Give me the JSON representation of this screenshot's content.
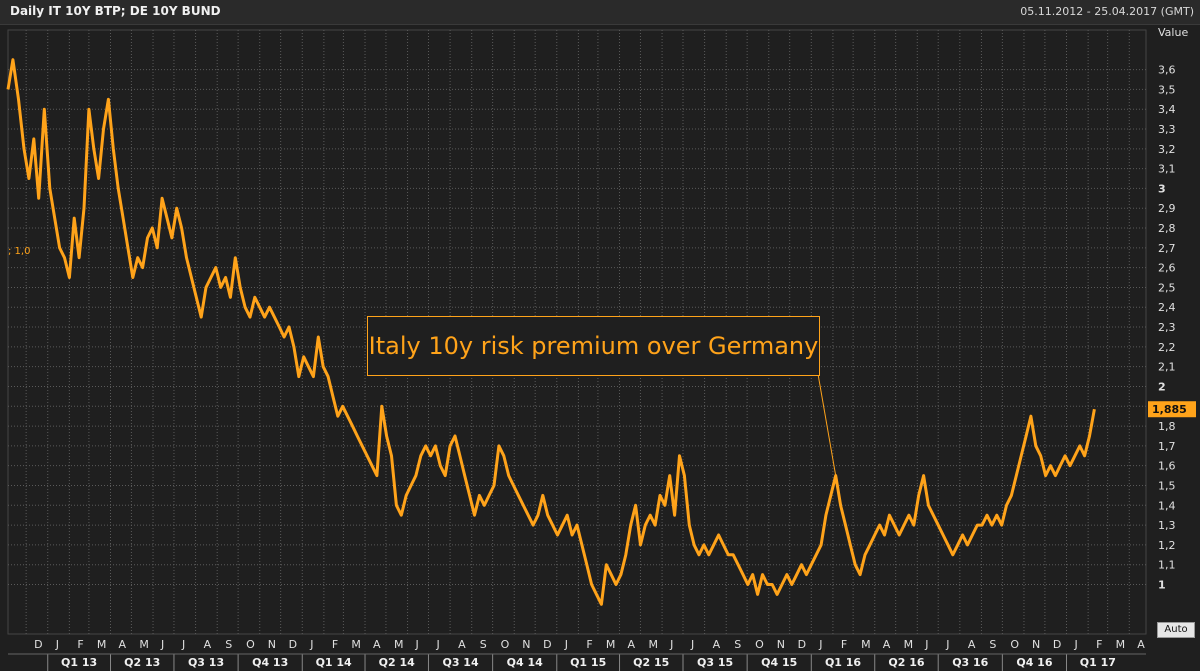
{
  "header": {
    "title": "Daily IT 10Y BTP; DE 10Y BUND",
    "range": "05.11.2012 - 25.04.2017 (GMT)"
  },
  "legend_value": "; 1,0",
  "annotation_text": "Italy 10y risk premium over Germany",
  "auto_label": "Auto",
  "colors": {
    "series": "#ffa31a",
    "grid": "#5a5a5a",
    "background": "#1f1f1f"
  },
  "chart_data": {
    "type": "line",
    "title": "Daily IT 10Y BTP; DE 10Y BUND",
    "ylabel": "Value",
    "ylim": [
      0.75,
      3.8
    ],
    "yticks": [
      1,
      1.1,
      1.2,
      1.3,
      1.4,
      1.5,
      1.6,
      1.7,
      1.8,
      1.9,
      2,
      2.1,
      2.2,
      2.3,
      2.4,
      2.5,
      2.6,
      2.7,
      2.8,
      2.9,
      3,
      3.1,
      3.2,
      3.3,
      3.4,
      3.5,
      3.6
    ],
    "ytick_labels": [
      "1",
      "1,1",
      "1,2",
      "1,3",
      "1,4",
      "1,5",
      "1,6",
      "1,7",
      "1,8",
      "1,9",
      "2",
      "2,1",
      "2,2",
      "2,3",
      "2,4",
      "2,5",
      "2,6",
      "2,7",
      "2,8",
      "2,9",
      "3",
      "3,1",
      "3,2",
      "3,3",
      "3,4",
      "3,5",
      "3,6"
    ],
    "last_value_label": "1,885",
    "month_labels": [
      "D",
      "J",
      "F",
      "M",
      "A",
      "M",
      "J",
      "J",
      "A",
      "S",
      "O",
      "N",
      "D",
      "J",
      "F",
      "M",
      "A",
      "M",
      "J",
      "J",
      "A",
      "S",
      "O",
      "N",
      "D",
      "J",
      "F",
      "M",
      "A",
      "M",
      "J",
      "J",
      "A",
      "S",
      "O",
      "N",
      "D",
      "J",
      "F",
      "M",
      "A",
      "M",
      "J",
      "J",
      "A",
      "S",
      "O",
      "N",
      "D",
      "J",
      "F",
      "M",
      "A"
    ],
    "quarter_labels": [
      "Q1 13",
      "Q2 13",
      "Q3 13",
      "Q4 13",
      "Q1 14",
      "Q2 14",
      "Q3 14",
      "Q4 14",
      "Q1 15",
      "Q2 15",
      "Q3 15",
      "Q4 15",
      "Q1 16",
      "Q2 16",
      "Q3 16",
      "Q4 16",
      "Q1 17"
    ],
    "series": [
      {
        "name": "IT 10Y BTP - DE 10Y BUND spread",
        "points": [
          [
            "2012-11-05",
            3.5
          ],
          [
            "2012-11-12",
            3.65
          ],
          [
            "2012-11-20",
            3.45
          ],
          [
            "2012-11-28",
            3.2
          ],
          [
            "2012-12-05",
            3.05
          ],
          [
            "2012-12-12",
            3.25
          ],
          [
            "2012-12-19",
            2.95
          ],
          [
            "2012-12-27",
            3.4
          ],
          [
            "2013-01-04",
            3.0
          ],
          [
            "2013-01-11",
            2.85
          ],
          [
            "2013-01-18",
            2.7
          ],
          [
            "2013-01-25",
            2.65
          ],
          [
            "2013-02-01",
            2.55
          ],
          [
            "2013-02-08",
            2.85
          ],
          [
            "2013-02-15",
            2.65
          ],
          [
            "2013-02-22",
            2.9
          ],
          [
            "2013-03-01",
            3.4
          ],
          [
            "2013-03-08",
            3.2
          ],
          [
            "2013-03-15",
            3.05
          ],
          [
            "2013-03-22",
            3.3
          ],
          [
            "2013-03-29",
            3.45
          ],
          [
            "2013-04-05",
            3.2
          ],
          [
            "2013-04-12",
            3.0
          ],
          [
            "2013-04-19",
            2.85
          ],
          [
            "2013-04-26",
            2.7
          ],
          [
            "2013-05-03",
            2.55
          ],
          [
            "2013-05-10",
            2.65
          ],
          [
            "2013-05-17",
            2.6
          ],
          [
            "2013-05-24",
            2.75
          ],
          [
            "2013-05-31",
            2.8
          ],
          [
            "2013-06-07",
            2.7
          ],
          [
            "2013-06-14",
            2.95
          ],
          [
            "2013-06-21",
            2.85
          ],
          [
            "2013-06-28",
            2.75
          ],
          [
            "2013-07-05",
            2.9
          ],
          [
            "2013-07-12",
            2.8
          ],
          [
            "2013-07-19",
            2.65
          ],
          [
            "2013-07-26",
            2.55
          ],
          [
            "2013-08-02",
            2.45
          ],
          [
            "2013-08-09",
            2.35
          ],
          [
            "2013-08-16",
            2.5
          ],
          [
            "2013-08-23",
            2.55
          ],
          [
            "2013-08-30",
            2.6
          ],
          [
            "2013-09-06",
            2.5
          ],
          [
            "2013-09-13",
            2.55
          ],
          [
            "2013-09-20",
            2.45
          ],
          [
            "2013-09-27",
            2.65
          ],
          [
            "2013-10-04",
            2.5
          ],
          [
            "2013-10-11",
            2.4
          ],
          [
            "2013-10-18",
            2.35
          ],
          [
            "2013-10-25",
            2.45
          ],
          [
            "2013-11-01",
            2.4
          ],
          [
            "2013-11-08",
            2.35
          ],
          [
            "2013-11-15",
            2.4
          ],
          [
            "2013-11-22",
            2.35
          ],
          [
            "2013-11-29",
            2.3
          ],
          [
            "2013-12-06",
            2.25
          ],
          [
            "2013-12-13",
            2.3
          ],
          [
            "2013-12-20",
            2.2
          ],
          [
            "2013-12-27",
            2.05
          ],
          [
            "2014-01-03",
            2.15
          ],
          [
            "2014-01-10",
            2.1
          ],
          [
            "2014-01-17",
            2.05
          ],
          [
            "2014-01-24",
            2.25
          ],
          [
            "2014-01-31",
            2.1
          ],
          [
            "2014-02-07",
            2.05
          ],
          [
            "2014-02-14",
            1.95
          ],
          [
            "2014-02-21",
            1.85
          ],
          [
            "2014-02-28",
            1.9
          ],
          [
            "2014-03-07",
            1.85
          ],
          [
            "2014-03-14",
            1.8
          ],
          [
            "2014-03-21",
            1.75
          ],
          [
            "2014-03-28",
            1.7
          ],
          [
            "2014-04-04",
            1.65
          ],
          [
            "2014-04-11",
            1.6
          ],
          [
            "2014-04-18",
            1.55
          ],
          [
            "2014-04-25",
            1.9
          ],
          [
            "2014-05-02",
            1.75
          ],
          [
            "2014-05-09",
            1.65
          ],
          [
            "2014-05-16",
            1.4
          ],
          [
            "2014-05-23",
            1.35
          ],
          [
            "2014-05-30",
            1.45
          ],
          [
            "2014-06-06",
            1.5
          ],
          [
            "2014-06-13",
            1.55
          ],
          [
            "2014-06-20",
            1.65
          ],
          [
            "2014-06-27",
            1.7
          ],
          [
            "2014-07-04",
            1.65
          ],
          [
            "2014-07-11",
            1.7
          ],
          [
            "2014-07-18",
            1.6
          ],
          [
            "2014-07-25",
            1.55
          ],
          [
            "2014-08-01",
            1.7
          ],
          [
            "2014-08-08",
            1.75
          ],
          [
            "2014-08-15",
            1.65
          ],
          [
            "2014-08-22",
            1.55
          ],
          [
            "2014-08-29",
            1.45
          ],
          [
            "2014-09-05",
            1.35
          ],
          [
            "2014-09-12",
            1.45
          ],
          [
            "2014-09-19",
            1.4
          ],
          [
            "2014-09-26",
            1.45
          ],
          [
            "2014-10-03",
            1.5
          ],
          [
            "2014-10-10",
            1.7
          ],
          [
            "2014-10-17",
            1.65
          ],
          [
            "2014-10-24",
            1.55
          ],
          [
            "2014-10-31",
            1.5
          ],
          [
            "2014-11-07",
            1.45
          ],
          [
            "2014-11-14",
            1.4
          ],
          [
            "2014-11-21",
            1.35
          ],
          [
            "2014-11-28",
            1.3
          ],
          [
            "2014-12-05",
            1.35
          ],
          [
            "2014-12-12",
            1.45
          ],
          [
            "2014-12-19",
            1.35
          ],
          [
            "2014-12-26",
            1.3
          ],
          [
            "2015-01-02",
            1.25
          ],
          [
            "2015-01-09",
            1.3
          ],
          [
            "2015-01-16",
            1.35
          ],
          [
            "2015-01-23",
            1.25
          ],
          [
            "2015-01-30",
            1.3
          ],
          [
            "2015-02-06",
            1.2
          ],
          [
            "2015-02-13",
            1.1
          ],
          [
            "2015-02-20",
            1.0
          ],
          [
            "2015-02-27",
            0.95
          ],
          [
            "2015-03-06",
            0.9
          ],
          [
            "2015-03-13",
            1.1
          ],
          [
            "2015-03-20",
            1.05
          ],
          [
            "2015-03-27",
            1.0
          ],
          [
            "2015-04-03",
            1.05
          ],
          [
            "2015-04-10",
            1.15
          ],
          [
            "2015-04-17",
            1.3
          ],
          [
            "2015-04-24",
            1.4
          ],
          [
            "2015-05-01",
            1.2
          ],
          [
            "2015-05-08",
            1.3
          ],
          [
            "2015-05-15",
            1.35
          ],
          [
            "2015-05-22",
            1.3
          ],
          [
            "2015-05-29",
            1.45
          ],
          [
            "2015-06-05",
            1.4
          ],
          [
            "2015-06-12",
            1.55
          ],
          [
            "2015-06-19",
            1.35
          ],
          [
            "2015-06-26",
            1.65
          ],
          [
            "2015-07-03",
            1.55
          ],
          [
            "2015-07-10",
            1.3
          ],
          [
            "2015-07-17",
            1.2
          ],
          [
            "2015-07-24",
            1.15
          ],
          [
            "2015-07-31",
            1.2
          ],
          [
            "2015-08-07",
            1.15
          ],
          [
            "2015-08-14",
            1.2
          ],
          [
            "2015-08-21",
            1.25
          ],
          [
            "2015-08-28",
            1.2
          ],
          [
            "2015-09-04",
            1.15
          ],
          [
            "2015-09-11",
            1.15
          ],
          [
            "2015-09-18",
            1.1
          ],
          [
            "2015-09-25",
            1.05
          ],
          [
            "2015-10-02",
            1.0
          ],
          [
            "2015-10-09",
            1.05
          ],
          [
            "2015-10-16",
            0.95
          ],
          [
            "2015-10-23",
            1.05
          ],
          [
            "2015-10-30",
            1.0
          ],
          [
            "2015-11-06",
            1.0
          ],
          [
            "2015-11-13",
            0.95
          ],
          [
            "2015-11-20",
            1.0
          ],
          [
            "2015-11-27",
            1.05
          ],
          [
            "2015-12-04",
            1.0
          ],
          [
            "2015-12-11",
            1.05
          ],
          [
            "2015-12-18",
            1.1
          ],
          [
            "2015-12-25",
            1.05
          ],
          [
            "2016-01-01",
            1.1
          ],
          [
            "2016-01-08",
            1.15
          ],
          [
            "2016-01-15",
            1.2
          ],
          [
            "2016-01-22",
            1.35
          ],
          [
            "2016-01-29",
            1.45
          ],
          [
            "2016-02-05",
            1.55
          ],
          [
            "2016-02-12",
            1.4
          ],
          [
            "2016-02-19",
            1.3
          ],
          [
            "2016-02-26",
            1.2
          ],
          [
            "2016-03-04",
            1.1
          ],
          [
            "2016-03-11",
            1.05
          ],
          [
            "2016-03-18",
            1.15
          ],
          [
            "2016-03-25",
            1.2
          ],
          [
            "2016-04-01",
            1.25
          ],
          [
            "2016-04-08",
            1.3
          ],
          [
            "2016-04-15",
            1.25
          ],
          [
            "2016-04-22",
            1.35
          ],
          [
            "2016-04-29",
            1.3
          ],
          [
            "2016-05-06",
            1.25
          ],
          [
            "2016-05-13",
            1.3
          ],
          [
            "2016-05-20",
            1.35
          ],
          [
            "2016-05-27",
            1.3
          ],
          [
            "2016-06-03",
            1.45
          ],
          [
            "2016-06-10",
            1.55
          ],
          [
            "2016-06-17",
            1.4
          ],
          [
            "2016-06-24",
            1.35
          ],
          [
            "2016-07-01",
            1.3
          ],
          [
            "2016-07-08",
            1.25
          ],
          [
            "2016-07-15",
            1.2
          ],
          [
            "2016-07-22",
            1.15
          ],
          [
            "2016-07-29",
            1.2
          ],
          [
            "2016-08-05",
            1.25
          ],
          [
            "2016-08-12",
            1.2
          ],
          [
            "2016-08-19",
            1.25
          ],
          [
            "2016-08-26",
            1.3
          ],
          [
            "2016-09-02",
            1.3
          ],
          [
            "2016-09-09",
            1.35
          ],
          [
            "2016-09-16",
            1.3
          ],
          [
            "2016-09-23",
            1.35
          ],
          [
            "2016-09-30",
            1.3
          ],
          [
            "2016-10-07",
            1.4
          ],
          [
            "2016-10-14",
            1.45
          ],
          [
            "2016-10-21",
            1.55
          ],
          [
            "2016-10-28",
            1.65
          ],
          [
            "2016-11-04",
            1.75
          ],
          [
            "2016-11-11",
            1.85
          ],
          [
            "2016-11-18",
            1.7
          ],
          [
            "2016-11-25",
            1.65
          ],
          [
            "2016-12-02",
            1.55
          ],
          [
            "2016-12-09",
            1.6
          ],
          [
            "2016-12-16",
            1.55
          ],
          [
            "2016-12-23",
            1.6
          ],
          [
            "2016-12-30",
            1.65
          ],
          [
            "2017-01-06",
            1.6
          ],
          [
            "2017-01-13",
            1.65
          ],
          [
            "2017-01-20",
            1.7
          ],
          [
            "2017-01-27",
            1.65
          ],
          [
            "2017-02-03",
            1.75
          ],
          [
            "2017-02-10",
            1.885
          ]
        ]
      }
    ],
    "annotation": "Italy 10y risk premium over Germany"
  }
}
